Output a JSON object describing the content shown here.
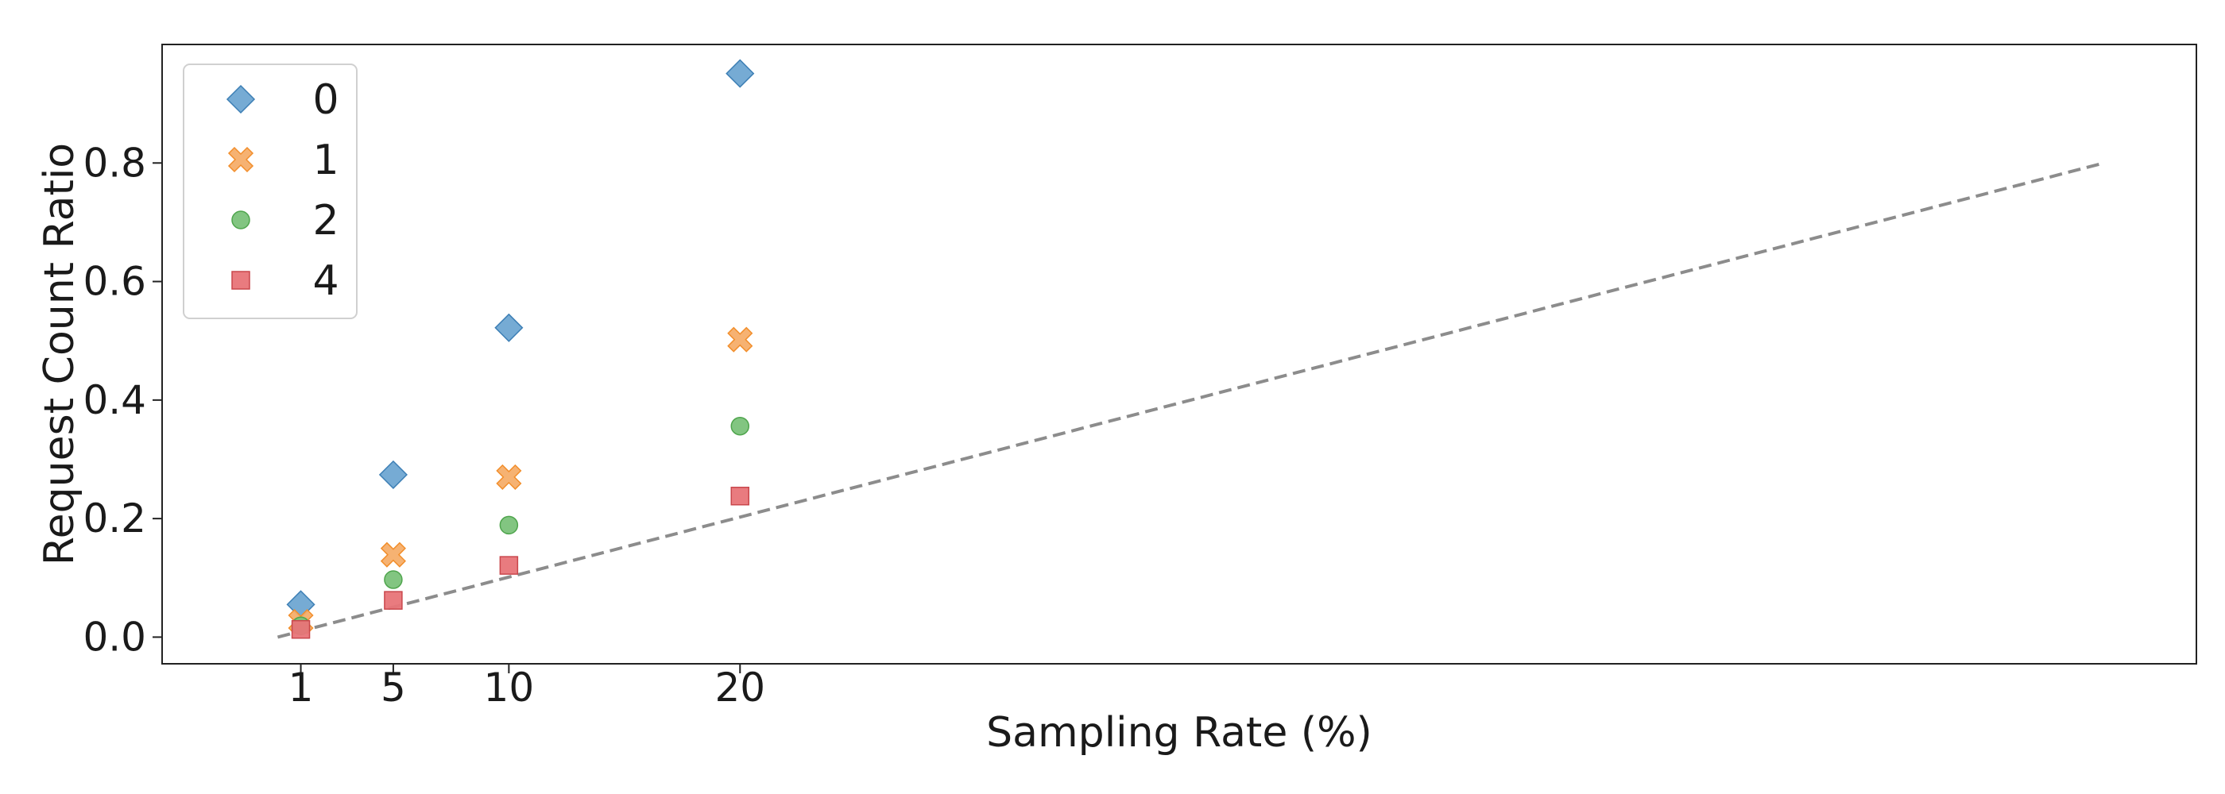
{
  "chart_data": {
    "type": "scatter",
    "title": "",
    "xlabel": "Sampling Rate (%)",
    "ylabel": "Request Count Ratio",
    "xlim": [
      -5,
      83
    ],
    "ylim": [
      -0.045,
      1.0
    ],
    "x_ticks": [
      1,
      5,
      10,
      20
    ],
    "x_tick_labels": [
      "1",
      "5",
      "10",
      "20"
    ],
    "y_ticks": [
      0.0,
      0.2,
      0.4,
      0.6,
      0.8
    ],
    "y_tick_labels": [
      "0.0",
      "0.2",
      "0.4",
      "0.6",
      "0.8"
    ],
    "grid": false,
    "legend_position": "top-left",
    "series": [
      {
        "name": "0",
        "marker": "diamond",
        "color": "#6fa6d2",
        "edge": "#3d7fb5",
        "x": [
          1,
          5,
          10,
          20
        ],
        "y": [
          0.055,
          0.274,
          0.522,
          0.951
        ]
      },
      {
        "name": "1",
        "marker": "x",
        "color": "#f6ae6a",
        "edge": "#f28e2b",
        "x": [
          1,
          5,
          10,
          20
        ],
        "y": [
          0.026,
          0.139,
          0.27,
          0.502
        ]
      },
      {
        "name": "2",
        "marker": "circle",
        "color": "#7bc27a",
        "edge": "#4fa54d",
        "x": [
          1,
          5,
          10,
          20
        ],
        "y": [
          0.019,
          0.097,
          0.189,
          0.356
        ]
      },
      {
        "name": "4",
        "marker": "square",
        "color": "#e87478",
        "edge": "#c9474c",
        "x": [
          1,
          5,
          10,
          20
        ],
        "y": [
          0.013,
          0.062,
          0.121,
          0.238
        ]
      }
    ],
    "reference_line": {
      "style": "dashed",
      "color": "#8c8c8c",
      "x": [
        0,
        79
      ],
      "y": [
        0.0,
        0.8
      ]
    }
  }
}
